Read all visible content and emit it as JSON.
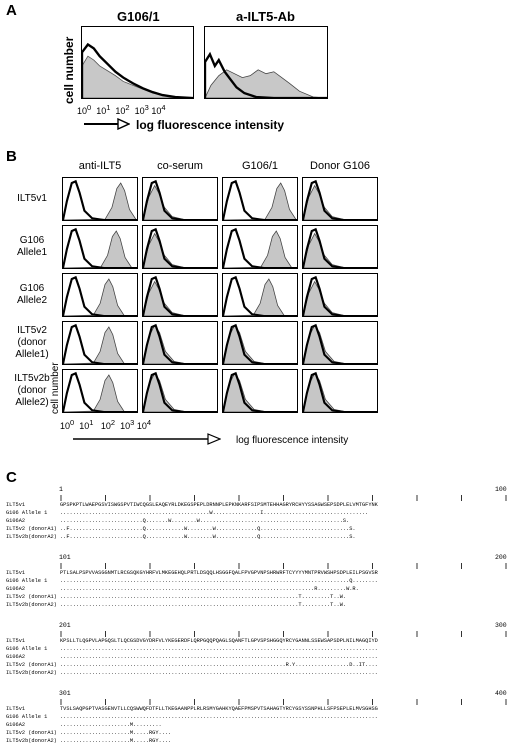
{
  "panel_a": {
    "letter": "A",
    "titles": [
      "G106/1",
      "a-ILT5-Ab"
    ],
    "ylabel": "cell number",
    "xlabel": "log fluorescence intensity",
    "ticks": [
      "10",
      "0",
      "10",
      "1",
      "10",
      "2",
      "10",
      "3",
      "10",
      "4"
    ]
  },
  "panel_b": {
    "letter": "B",
    "columns": [
      "anti-ILT5",
      "co-serum",
      "G106/1",
      "Donor G106"
    ],
    "rows": [
      "ILT5v1",
      "G106\nAllele1",
      "G106\nAllele2",
      "ILT5v2\n(donor\nAllele1)",
      "ILT5v2b\n(donor\nAllele2)"
    ],
    "ylabel": "cell number",
    "xlabel": "log fluorescence intensity",
    "ticks": [
      "10",
      "0",
      "10",
      "1",
      "10",
      "2",
      "10",
      "3",
      "10",
      "4"
    ]
  },
  "panel_c": {
    "letter": "C",
    "blocks": [
      {
        "start": "1",
        "end": "100",
        "lines": [
          {
            "name": "ILT5v1",
            "seq": "GPSPKPTLWAEPGSVISWGSPVTIWCQGSLEAQEYRLDKEGSPEPLDRNNPLEPKNKARFSIPSMTEHHAGRYRCHYYSSAGWSEPSDPLELVMTGFYNK"
          },
          {
            "name": "G106 Allele 1",
            "seq": "...............................................W...............I................................."
          },
          {
            "name": "G106A2",
            "seq": "..........................Q.......W........W.............................................S."
          },
          {
            "name": "ILT5v2 (donorA1)",
            "seq": "..F.......................Q............W........W.............Q............................S."
          },
          {
            "name": "ILT5v2b(donorA2)",
            "seq": "..F.......................Q............W........W.............Q............................S."
          }
        ]
      },
      {
        "start": "101",
        "end": "200",
        "lines": [
          {
            "name": "ILT5v1",
            "seq": "PTLSALPSPVVASGGNMTLRCGSQKGYHRFVLMKEGEHQLPRTLDSQQLHSGGFQALFPVGPVNPSHRWRFTCYYYYMNTPRVWSHPSDPLEILPSGVSR"
          },
          {
            "name": "G106 Allele 1",
            "seq": "...........................................................................................Q........"
          },
          {
            "name": "G106A2",
            "seq": "................................................................................R.........W.R."
          },
          {
            "name": "ILT5v2 (donorA1)",
            "seq": "...........................................................................T.........T..W."
          },
          {
            "name": "ILT5v2b(donorA2)",
            "seq": "...........................................................................T.........T..W."
          }
        ]
      },
      {
        "start": "201",
        "end": "300",
        "lines": [
          {
            "name": "ILT5v1",
            "seq": "KPSLLTLQGPVLAPGQSLTLQCGSDVGYDRFVLYKEGERDFLQRPGQQPQAGLSQANFTLGPVSPSHGGQYRCYGANNLSSEWSAPSDPLNILMAGQIYD"
          },
          {
            "name": "G106 Allele 1",
            "seq": "...................................................................................................."
          },
          {
            "name": "G106A2",
            "seq": "...................................................................................................."
          },
          {
            "name": "ILT5v2 (donorA1)",
            "seq": ".......................................................................R.Y.................D..IT...."
          },
          {
            "name": "ILT5v2b(donorA2)",
            "seq": "...................................................................................................."
          }
        ]
      },
      {
        "start": "301",
        "end": "400",
        "lines": [
          {
            "name": "ILT5v1",
            "seq": "TVSLSAQPGPTVASGENVTLLCQSWWQFDTFLLTKEGAANPPLRLRSMYGAHKYQAEFPMSPVTSAHAGTYRCYGSYSSNPHLLSFPSEPLELMVSGHSG"
          },
          {
            "name": "G106 Allele 1",
            "seq": "...................................................................................................."
          },
          {
            "name": "G106A2",
            "seq": "......................M........."
          },
          {
            "name": "ILT5v2 (donorA1)",
            "seq": "......................M.....RGY...."
          },
          {
            "name": "ILT5v2b(donorA2)",
            "seq": "......................M.....RGY...."
          }
        ]
      }
    ]
  }
}
